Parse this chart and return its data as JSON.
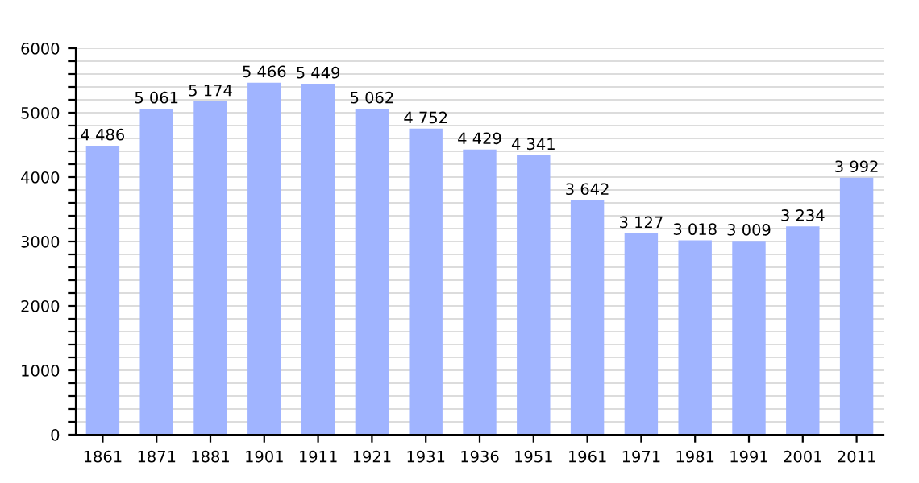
{
  "chart_data": {
    "type": "bar",
    "categories": [
      "1861",
      "1871",
      "1881",
      "1901",
      "1911",
      "1921",
      "1931",
      "1936",
      "1951",
      "1961",
      "1971",
      "1981",
      "1991",
      "2001",
      "2011"
    ],
    "values": [
      4486,
      5061,
      5174,
      5466,
      5449,
      5062,
      4752,
      4429,
      4341,
      3642,
      3127,
      3018,
      3009,
      3234,
      3992
    ],
    "value_labels": [
      "4 486",
      "5 061",
      "5 174",
      "5 466",
      "5 449",
      "5 062",
      "4 752",
      "4 429",
      "4 341",
      "3 642",
      "3 127",
      "3 018",
      "3 009",
      "3 234",
      "3 992"
    ],
    "color": "#a0b4ff",
    "ylim": [
      0,
      6000
    ],
    "yticks": [
      0,
      {
        "value": 200,
        "label": null
      },
      {
        "value": 400,
        "label": null
      },
      {
        "value": 600,
        "label": null
      },
      {
        "value": 800,
        "label": null
      },
      1000,
      {
        "value": 1200,
        "label": null
      },
      {
        "value": 1400,
        "label": null
      },
      {
        "value": 1600,
        "label": null
      },
      {
        "value": 1800,
        "label": null
      },
      2000,
      {
        "value": 2200,
        "label": null
      },
      {
        "value": 2400,
        "label": null
      },
      {
        "value": 2600,
        "label": null
      },
      {
        "value": 2800,
        "label": null
      },
      3000,
      {
        "value": 3200,
        "label": null
      },
      {
        "value": 3400,
        "label": null
      },
      {
        "value": 3600,
        "label": null
      },
      {
        "value": 3800,
        "label": null
      },
      4000,
      {
        "value": 4200,
        "label": null
      },
      {
        "value": 4400,
        "label": null
      },
      {
        "value": 4600,
        "label": null
      },
      {
        "value": 4800,
        "label": null
      },
      5000,
      {
        "value": 5200,
        "label": null
      },
      {
        "value": 5400,
        "label": null
      },
      {
        "value": 5600,
        "label": null
      },
      {
        "value": 5800,
        "label": null
      },
      6000
    ],
    "grid": "y"
  }
}
